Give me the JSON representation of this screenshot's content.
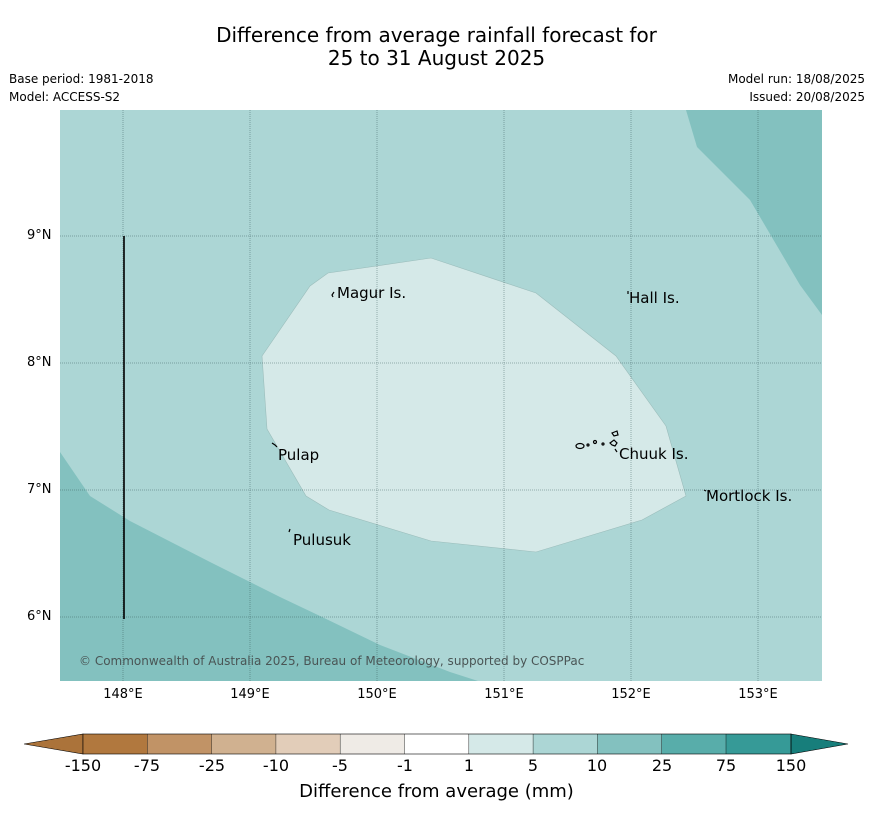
{
  "header": {
    "title_line1": "Difference from average rainfall forecast for",
    "title_line2": "25 to 31 August 2025",
    "base_period": "Base period: 1981-2018",
    "model": "Model: ACCESS-S2",
    "model_run": "Model run: 18/08/2025",
    "issued": "Issued: 20/08/2025"
  },
  "map": {
    "extent": {
      "lon": [
        147.5,
        153.5
      ],
      "lat": [
        5.5,
        9.98
      ]
    },
    "lat_ticks": [
      "9°N",
      "8°N",
      "7°N",
      "6°N"
    ],
    "lon_ticks": [
      "148°E",
      "149°E",
      "150°E",
      "151°E",
      "152°E",
      "153°E"
    ],
    "places": [
      {
        "name": "Magur Is.",
        "lon": 149.65,
        "lat": 8.57
      },
      {
        "name": "Hall Is.",
        "lon": 151.95,
        "lat": 8.53
      },
      {
        "name": "Pulap",
        "lon": 149.2,
        "lat": 7.3
      },
      {
        "name": "Chuuk Is.",
        "lon": 151.85,
        "lat": 7.33
      },
      {
        "name": "Mortlock Is.",
        "lon": 152.6,
        "lat": 6.98
      },
      {
        "name": "Pulusuk",
        "lon": 149.3,
        "lat": 6.65
      }
    ],
    "copyright": "© Commonwealth of Australia 2025, Bureau of Meteorology, supported by COSPPac",
    "colors": {
      "ocean_base": "#acd6d5",
      "band_1_5": "#d5e9e8",
      "band_10_25": "#83c1bf",
      "grid": "#2c4f4e"
    }
  },
  "colorbar": {
    "title": "Difference from average (mm)",
    "labels": [
      "-150",
      "-75",
      "-25",
      "-10",
      "-5",
      "-1",
      "1",
      "5",
      "10",
      "25",
      "75",
      "150"
    ],
    "colors": [
      "#ab733a",
      "#b1783e",
      "#c19366",
      "#d0b190",
      "#e2cdb9",
      "#efebe6",
      "#ffffff",
      "#d5e9e8",
      "#acd6d5",
      "#83c1bf",
      "#58adaa",
      "#369a97",
      "#177e7b"
    ]
  }
}
